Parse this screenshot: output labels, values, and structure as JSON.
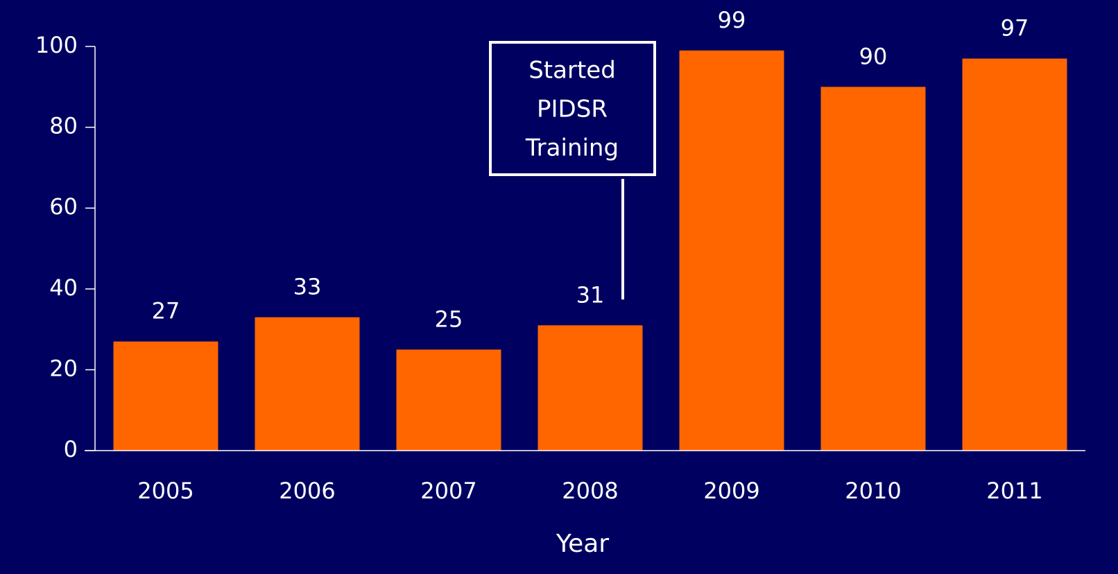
{
  "chart_data": {
    "type": "bar",
    "x_label": "Year",
    "categories": [
      "2005",
      "2006",
      "2007",
      "2008",
      "2009",
      "2010",
      "2011"
    ],
    "values": [
      27,
      33,
      25,
      31,
      99,
      90,
      97
    ],
    "color": "#ff6600",
    "ylim": [
      0,
      100
    ],
    "yticks": [
      0,
      20,
      40,
      60,
      80,
      100
    ],
    "grid": false,
    "annotation": {
      "lines": [
        "Started",
        "PIDSR",
        "Training"
      ]
    }
  }
}
